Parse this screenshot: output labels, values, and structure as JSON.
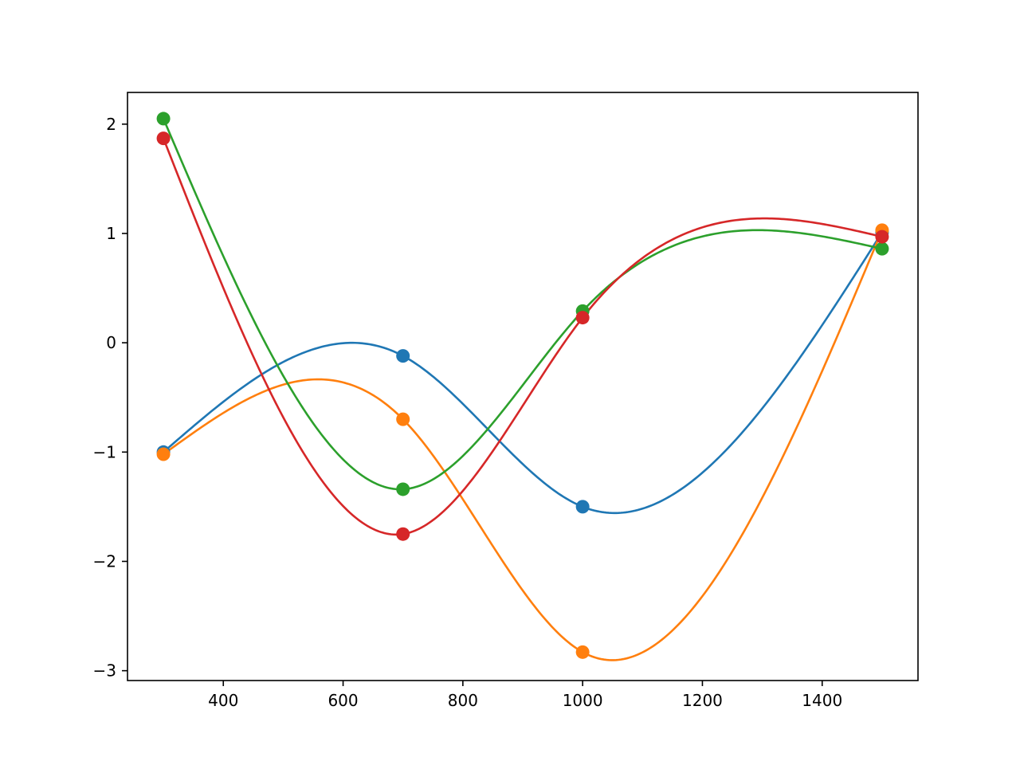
{
  "chart_data": {
    "type": "line",
    "title": "",
    "xlabel": "",
    "ylabel": "",
    "xlim": [
      240,
      1560
    ],
    "ylim": [
      -3.09,
      2.29
    ],
    "grid": false,
    "legend": "none",
    "x": [
      300,
      700,
      1000,
      1500
    ],
    "xticks": [
      400,
      600,
      800,
      1000,
      1200,
      1400
    ],
    "xtick_labels": [
      "400",
      "600",
      "800",
      "1000",
      "1200",
      "1400"
    ],
    "yticks": [
      2,
      1,
      0,
      -1,
      -2,
      -3
    ],
    "ytick_labels": [
      "2",
      "1",
      "0",
      "−1",
      "−2",
      "−3"
    ],
    "curve": "smooth cubic spline through points",
    "series": [
      {
        "color": "#1f77b4",
        "values": [
          -1.0,
          -0.12,
          -1.5,
          1.01
        ]
      },
      {
        "color": "#ff7f0e",
        "values": [
          -1.02,
          -0.7,
          -2.83,
          1.03
        ]
      },
      {
        "color": "#2ca02c",
        "values": [
          2.05,
          -1.34,
          0.29,
          0.86
        ]
      },
      {
        "color": "#d62728",
        "values": [
          1.87,
          -1.75,
          0.23,
          0.97
        ]
      }
    ]
  }
}
